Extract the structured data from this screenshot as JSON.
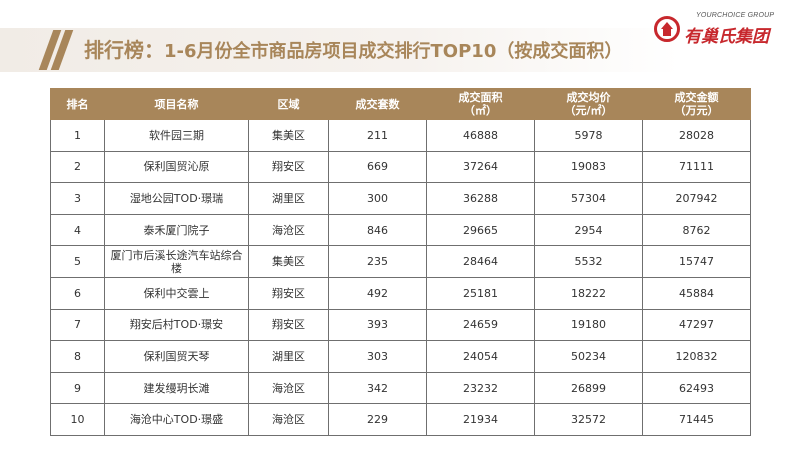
{
  "header": {
    "title_main": "排行榜：",
    "title_sub": "1-6月份全市商品房项目成交排行TOP10（按成交面积）"
  },
  "logo": {
    "en": "YOURCHOICE GROUP",
    "cn": "有巢氏集团",
    "icon": "house-circle-icon",
    "color": "#c7282d"
  },
  "colors": {
    "accent": "#a8865a"
  },
  "table": {
    "headers": [
      {
        "line1": "排名",
        "line2": ""
      },
      {
        "line1": "项目名称",
        "line2": ""
      },
      {
        "line1": "区域",
        "line2": ""
      },
      {
        "line1": "成交套数",
        "line2": ""
      },
      {
        "line1": "成交面积",
        "line2": "（㎡）"
      },
      {
        "line1": "成交均价",
        "line2": "（元/㎡）"
      },
      {
        "line1": "成交金额",
        "line2": "（万元）"
      }
    ],
    "rows": [
      {
        "rank": "1",
        "name": "软件园三期",
        "district": "集美区",
        "units": "211",
        "area": "46888",
        "price": "5978",
        "amount": "28028"
      },
      {
        "rank": "2",
        "name": "保利国贸沁原",
        "district": "翔安区",
        "units": "669",
        "area": "37264",
        "price": "19083",
        "amount": "71111"
      },
      {
        "rank": "3",
        "name": "湿地公园TOD·璟瑞",
        "district": "湖里区",
        "units": "300",
        "area": "36288",
        "price": "57304",
        "amount": "207942"
      },
      {
        "rank": "4",
        "name": "泰禾厦门院子",
        "district": "海沧区",
        "units": "846",
        "area": "29665",
        "price": "2954",
        "amount": "8762"
      },
      {
        "rank": "5",
        "name": "厦门市后溪长途汽车站综合楼",
        "district": "集美区",
        "units": "235",
        "area": "28464",
        "price": "5532",
        "amount": "15747"
      },
      {
        "rank": "6",
        "name": "保利中交雲上",
        "district": "翔安区",
        "units": "492",
        "area": "25181",
        "price": "18222",
        "amount": "45884"
      },
      {
        "rank": "7",
        "name": "翔安后村TOD·璟安",
        "district": "翔安区",
        "units": "393",
        "area": "24659",
        "price": "19180",
        "amount": "47297"
      },
      {
        "rank": "8",
        "name": "保利国贸天琴",
        "district": "湖里区",
        "units": "303",
        "area": "24054",
        "price": "50234",
        "amount": "120832"
      },
      {
        "rank": "9",
        "name": "建发缦玥长滩",
        "district": "海沧区",
        "units": "342",
        "area": "23232",
        "price": "26899",
        "amount": "62493"
      },
      {
        "rank": "10",
        "name": "海沧中心TOD·璟盛",
        "district": "海沧区",
        "units": "229",
        "area": "21934",
        "price": "32572",
        "amount": "71445"
      }
    ]
  }
}
